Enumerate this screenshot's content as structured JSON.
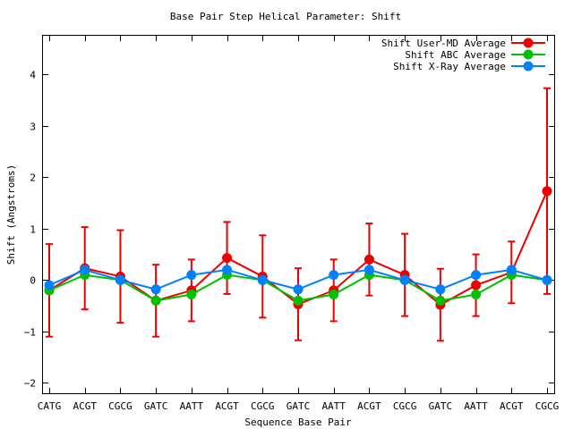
{
  "chart_data": {
    "type": "line",
    "title": "Base Pair Step Helical Parameter: Shift",
    "xlabel": "Sequence Base Pair",
    "ylabel": "Shift (Angstroms)",
    "ylim": [
      -2.2,
      4.75
    ],
    "yticks": [
      -2,
      -1,
      0,
      1,
      2,
      3,
      4
    ],
    "categories": [
      "CATG",
      "ACGT",
      "CGCG",
      "GATC",
      "AATT",
      "ACGT",
      "CGCG",
      "GATC",
      "AATT",
      "ACGT",
      "CGCG",
      "GATC",
      "AATT",
      "ACGT",
      "CGCG"
    ],
    "grid": false,
    "legend_position": "top-right",
    "series": [
      {
        "name": "Shift User-MD Average",
        "color": "#ee0000",
        "values": [
          -0.2,
          0.23,
          0.07,
          -0.4,
          -0.2,
          0.43,
          0.07,
          -0.47,
          -0.2,
          0.4,
          0.1,
          -0.48,
          -0.1,
          0.15,
          1.73
        ],
        "error": [
          0.9,
          0.8,
          0.9,
          0.7,
          0.6,
          0.7,
          0.8,
          0.7,
          0.6,
          0.7,
          0.8,
          0.7,
          0.6,
          0.6,
          2.0
        ]
      },
      {
        "name": "Shift ABC Average",
        "color": "#00c000",
        "values": [
          -0.2,
          0.1,
          0.0,
          -0.4,
          -0.28,
          0.1,
          0.0,
          -0.4,
          -0.28,
          0.1,
          0.0,
          -0.4,
          -0.28,
          0.1,
          0.0
        ]
      },
      {
        "name": "Shift X-Ray Average",
        "color": "#0080ff",
        "values": [
          -0.1,
          0.2,
          0.0,
          -0.18,
          0.1,
          0.2,
          0.0,
          -0.18,
          0.1,
          0.2,
          0.0,
          -0.18,
          0.1,
          0.2,
          0.0
        ]
      }
    ]
  }
}
